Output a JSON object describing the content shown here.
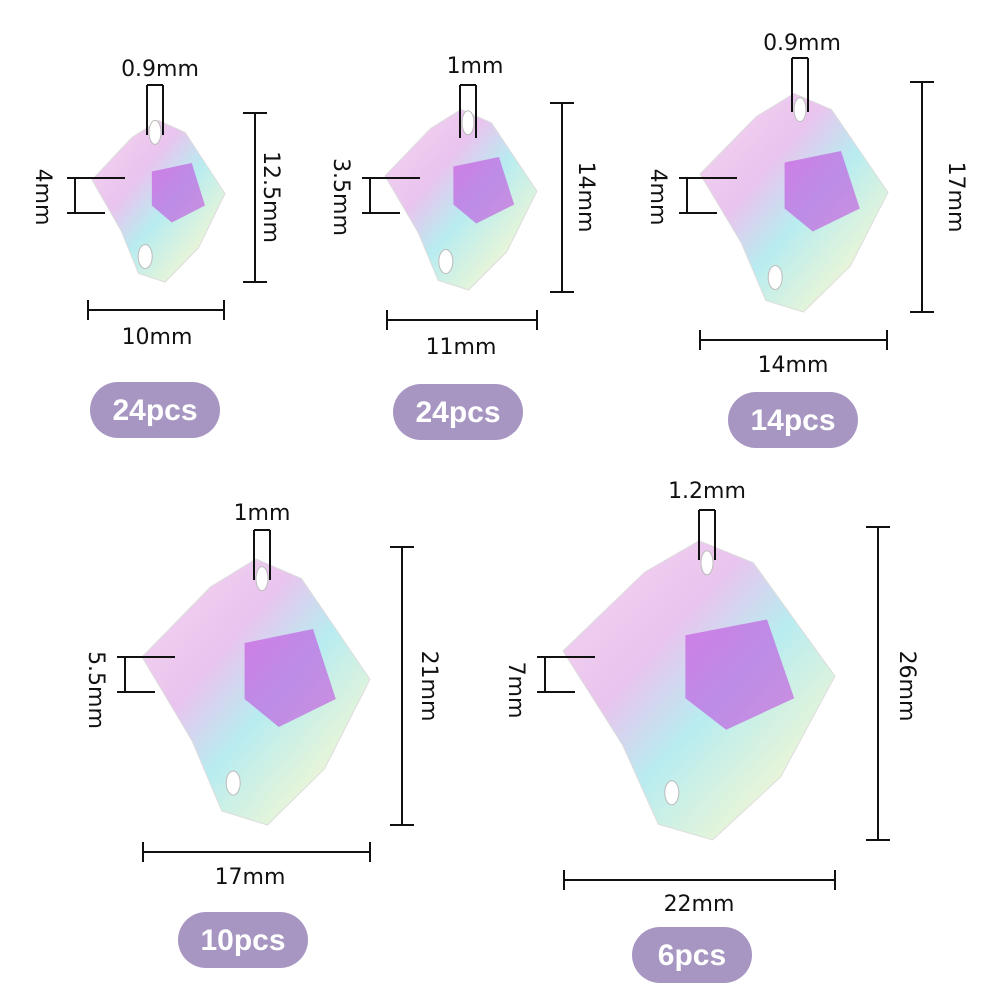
{
  "items": [
    {
      "hole": "0.9mm",
      "side": "4mm",
      "height": "12.5mm",
      "width": "10mm",
      "count": "24pcs"
    },
    {
      "hole": "1mm",
      "side": "3.5mm",
      "height": "14mm",
      "width": "11mm",
      "count": "24pcs"
    },
    {
      "hole": "0.9mm",
      "side": "4mm",
      "height": "17mm",
      "width": "14mm",
      "count": "14pcs"
    },
    {
      "hole": "1mm",
      "side": "5.5mm",
      "height": "21mm",
      "width": "17mm",
      "count": "10pcs"
    },
    {
      "hole": "1.2mm",
      "side": "7mm",
      "height": "26mm",
      "width": "22mm",
      "count": "6pcs"
    }
  ]
}
